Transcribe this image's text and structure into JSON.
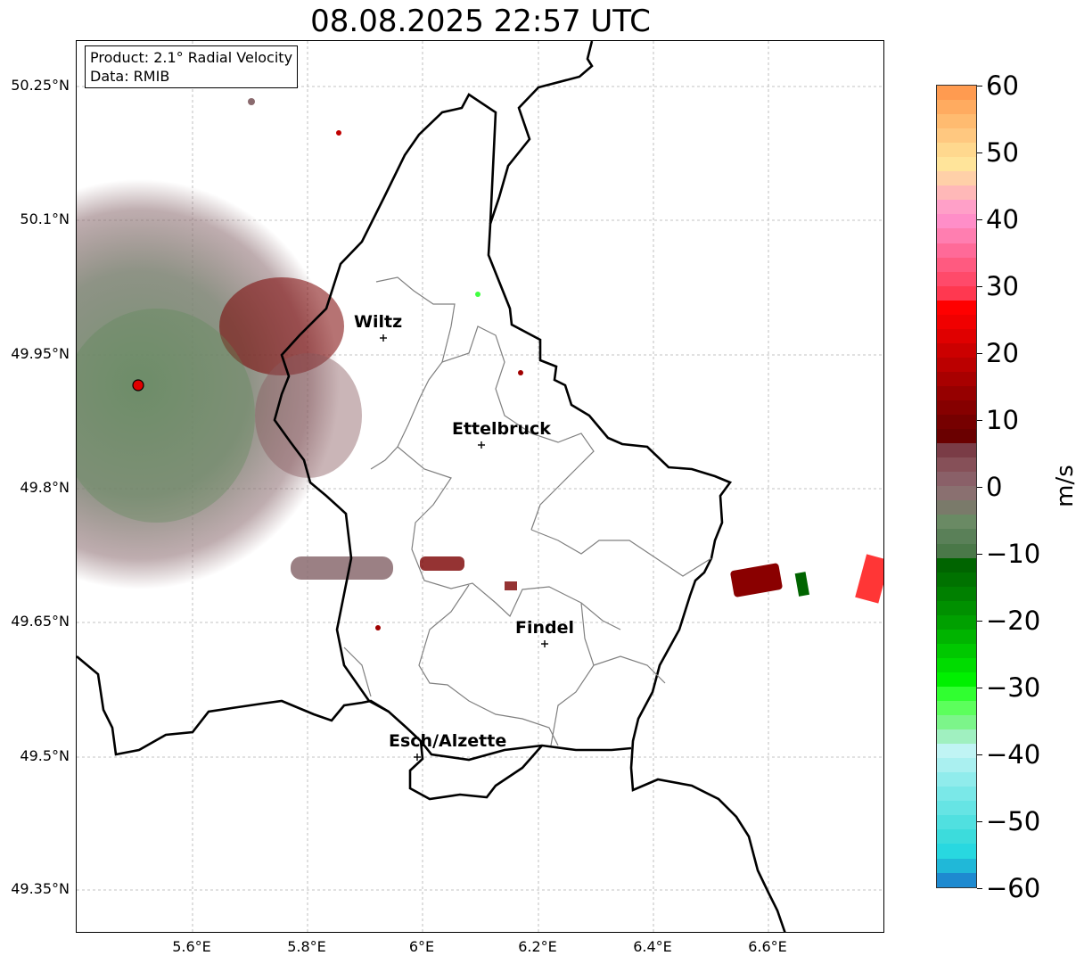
{
  "title": "08.08.2025 22:57 UTC",
  "info_box": {
    "product": "Product: 2.1° Radial Velocity",
    "data": "Data: RMIB"
  },
  "lat_labels": [
    "50.25°N",
    "50.1°N",
    "49.95°N",
    "49.8°N",
    "49.65°N",
    "49.5°N",
    "49.35°N"
  ],
  "lon_labels": [
    "5.6°E",
    "5.8°E",
    "6°E",
    "6.2°E",
    "6.4°E",
    "6.6°E"
  ],
  "cities": [
    "Wiltz",
    "Ettelbruck",
    "Findel",
    "Esch/Alzette"
  ],
  "colorbar": {
    "unit": "m/s",
    "ticks": [
      "60",
      "50",
      "40",
      "30",
      "20",
      "10",
      "0",
      "−10",
      "−20",
      "−30",
      "−40",
      "−50",
      "−60"
    ],
    "colors": [
      "#ff9b50",
      "#ffab60",
      "#ffbb70",
      "#ffc880",
      "#ffd88e",
      "#ffe49a",
      "#ffd0a8",
      "#ffb8b8",
      "#ffa0c8",
      "#ff8ec8",
      "#ff7eb0",
      "#ff6a98",
      "#ff5a80",
      "#ff4a6a",
      "#ff3850",
      "#ff0000",
      "#f00000",
      "#e00000",
      "#cc0000",
      "#bb0000",
      "#a80000",
      "#960000",
      "#860000",
      "#760000",
      "#6a0000",
      "#7a3c46",
      "#865058",
      "#8a6068",
      "#8a7070",
      "#7a7a6a",
      "#6a8a64",
      "#5a8058",
      "#4a7848",
      "#006400",
      "#007200",
      "#008000",
      "#009000",
      "#00a000",
      "#00b400",
      "#00c800",
      "#00dc00",
      "#00f000",
      "#30ff30",
      "#5cff5c",
      "#7cf58a",
      "#a0f0c0",
      "#c0f4f4",
      "#aaf0f0",
      "#90ecec",
      "#7ae8e8",
      "#66e4e4",
      "#50e0e0",
      "#3cdcdc",
      "#28d8e0",
      "#20b8d8",
      "#1e8ad0"
    ]
  }
}
